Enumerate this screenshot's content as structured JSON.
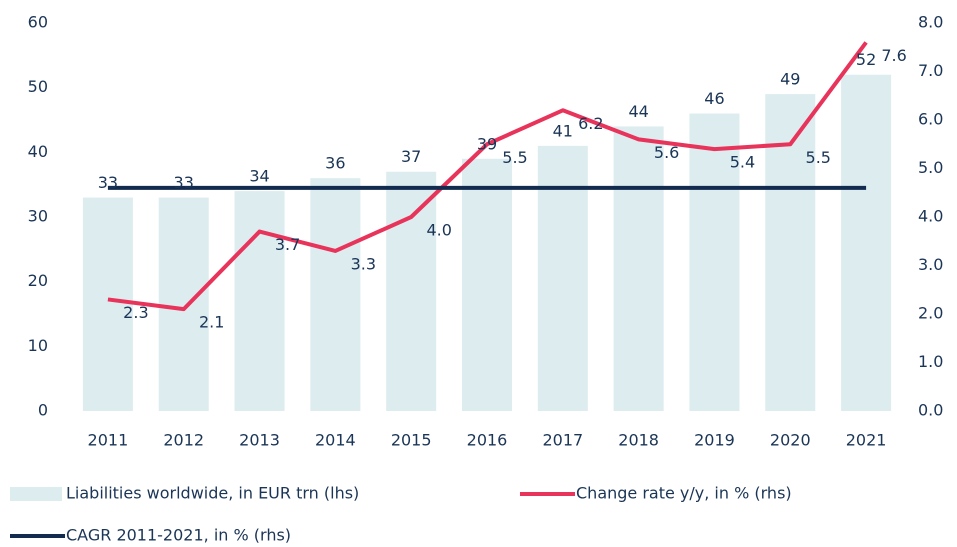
{
  "chart_data": {
    "type": "bar-line",
    "categories": [
      "2011",
      "2012",
      "2013",
      "2014",
      "2015",
      "2016",
      "2017",
      "2018",
      "2019",
      "2020",
      "2021"
    ],
    "series": [
      {
        "name": "Liabilities worldwide, in EUR trn (lhs)",
        "color": "#dcecef",
        "kind": "bar",
        "axis": "y",
        "values": [
          33,
          33,
          34,
          36,
          37,
          39,
          41,
          44,
          46,
          49,
          52
        ]
      },
      {
        "name": "Change rate y/y, in % (rhs)",
        "color": "#e8335a",
        "kind": "line",
        "axis": "y2",
        "values": [
          2.3,
          2.1,
          3.7,
          3.3,
          4.0,
          5.5,
          6.2,
          5.6,
          5.4,
          5.5,
          7.6
        ],
        "value_labels": [
          "2.3",
          "2.1",
          "3.7",
          "3.3",
          "4.0",
          "5.5",
          "6.2",
          "5.6",
          "5.4",
          "5.5",
          "7.6"
        ]
      },
      {
        "name": "CAGR 2011-2021, in % (rhs)",
        "color": "#122b4f",
        "kind": "line",
        "axis": "y2",
        "values": [
          4.6,
          4.6,
          4.6,
          4.6,
          4.6,
          4.6,
          4.6,
          4.6,
          4.6,
          4.6,
          4.6
        ]
      }
    ],
    "ylim": [
      0,
      60
    ],
    "yticks": [
      0,
      10,
      20,
      30,
      40,
      50,
      60
    ],
    "y2lim": [
      0,
      8
    ],
    "y2ticks": [
      {
        "value": 0,
        "label": "0.0"
      },
      {
        "value": 1,
        "label": "1.0"
      },
      {
        "value": 2,
        "label": "2.0"
      },
      {
        "value": 3,
        "label": "3.0"
      },
      {
        "value": 4,
        "label": "4.0"
      },
      {
        "value": 5,
        "label": "5.0"
      },
      {
        "value": 6,
        "label": "6.0"
      },
      {
        "value": 7,
        "label": "7.0"
      },
      {
        "value": 8,
        "label": "8.0"
      }
    ],
    "grid": false
  }
}
